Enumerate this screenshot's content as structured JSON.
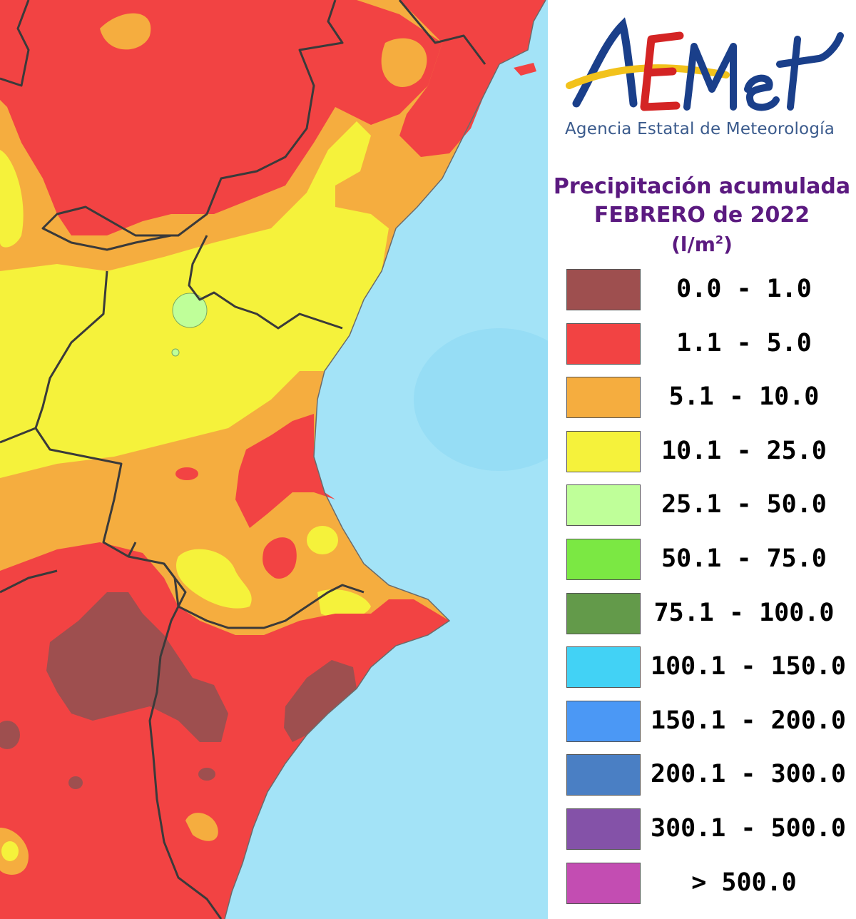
{
  "header": {
    "logo_text": "AEMet",
    "agency": "Agencia Estatal de Meteorología"
  },
  "title": {
    "line1": "Precipitación acumulada",
    "line2": "FEBRERO de 2022",
    "unit": "(l/m",
    "unit_sup": "2",
    "unit_close": ")"
  },
  "legend": [
    {
      "label": "0.0 - 1.0",
      "color": "#9e4f4f"
    },
    {
      "label": "1.1 - 5.0",
      "color": "#f24343"
    },
    {
      "label": "5.1 - 10.0",
      "color": "#f5ad3f"
    },
    {
      "label": "10.1 - 25.0",
      "color": "#f5f23b"
    },
    {
      "label": "25.1 - 50.0",
      "color": "#bfff99"
    },
    {
      "label": "50.1 - 75.0",
      "color": "#7be843"
    },
    {
      "label": "75.1 - 100.0",
      "color": "#639a4a"
    },
    {
      "label": "100.1 - 150.0",
      "color": "#42d2f5"
    },
    {
      "label": "150.1 - 200.0",
      "color": "#4b98f5"
    },
    {
      "label": "200.1 - 300.0",
      "color": "#4a7fc4"
    },
    {
      "label": "300.1 - 500.0",
      "color": "#8452a8"
    },
    {
      "label": "> 500.0",
      "color": "#c34db2"
    }
  ],
  "map": {
    "sea_color": "#a3e3f7",
    "border_color": "#3a3a3a"
  }
}
